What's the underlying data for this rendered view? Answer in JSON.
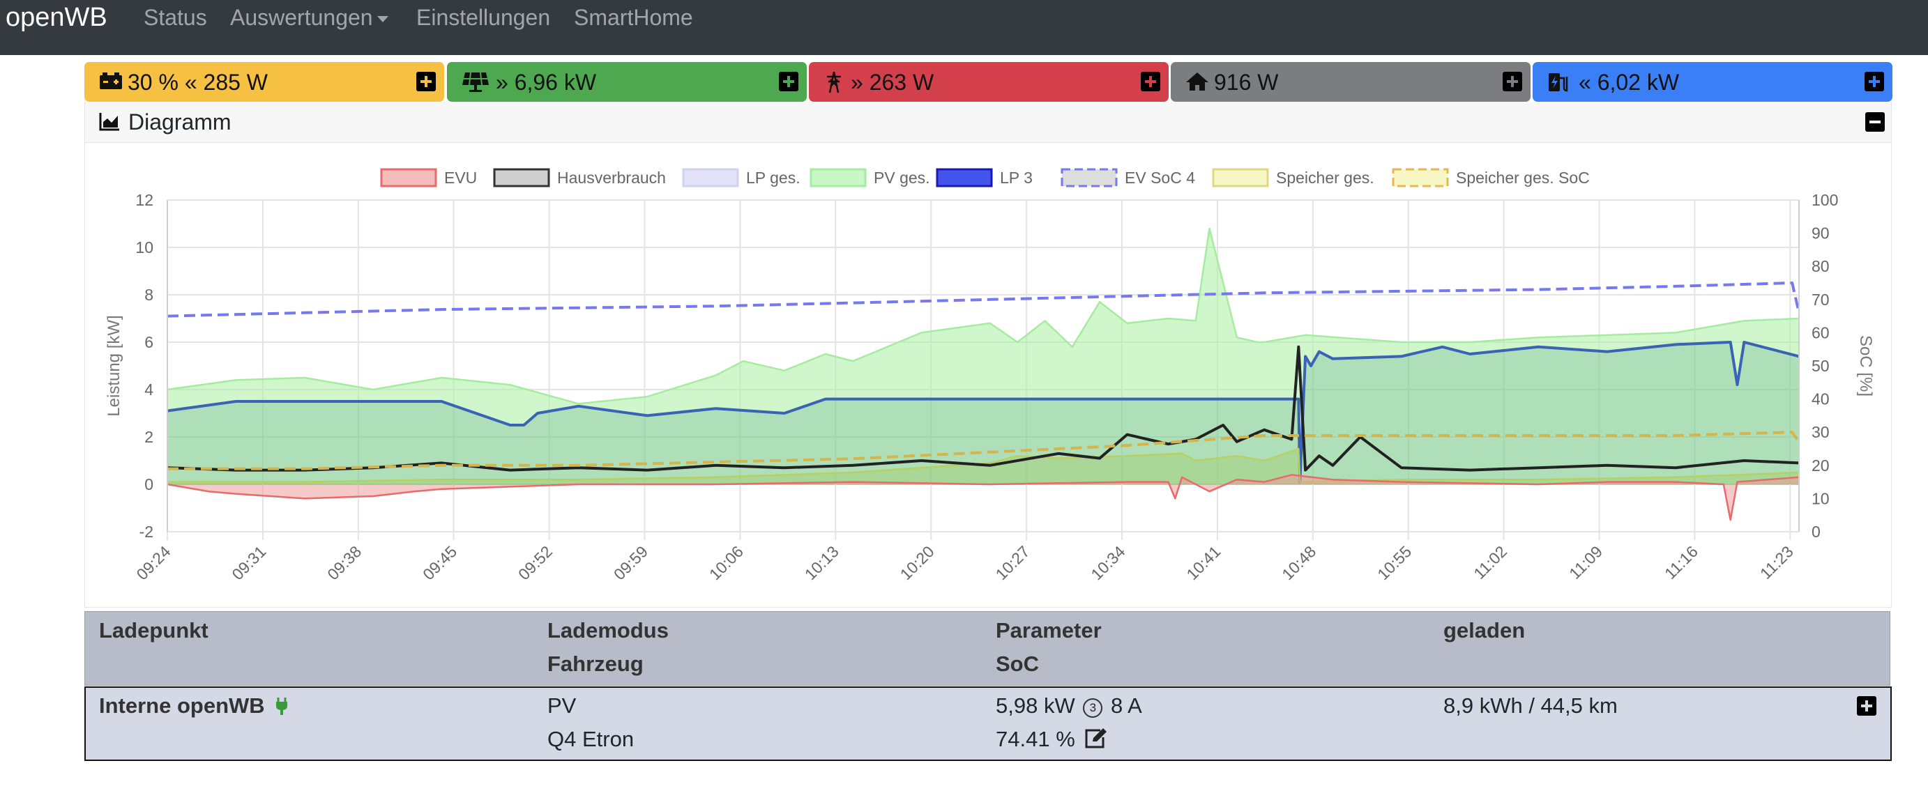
{
  "navbar": {
    "brand": "openWB",
    "links": [
      "Status",
      "Auswertungen",
      "Einstellungen",
      "SmartHome"
    ]
  },
  "tiles": [
    {
      "icon": "car-battery-icon",
      "value": "30 % « 285 W",
      "color": "#f6c142"
    },
    {
      "icon": "solar-panel-icon",
      "value": "» 6,96 kW",
      "color": "#4ea850"
    },
    {
      "icon": "power-tower-icon",
      "value": "» 263 W",
      "color": "#d3404c"
    },
    {
      "icon": "home-icon",
      "value": "916 W",
      "color": "#7b7d7f"
    },
    {
      "icon": "charging-station-icon",
      "value": "« 6,02 kW",
      "color": "#3a7ff6"
    }
  ],
  "diagram": {
    "title": "Diagramm"
  },
  "chart_data": {
    "type": "line",
    "legend_position": "top",
    "legend": [
      {
        "name": "EVU",
        "fill": "#f6bcbc",
        "stroke": "#e86a6a",
        "dashed": false
      },
      {
        "name": "Hausverbrauch",
        "fill": "#cfcfcf",
        "stroke": "#333333",
        "dashed": false
      },
      {
        "name": "LP ges.",
        "fill": "#e3e3f7",
        "stroke": "#d2d2ee",
        "dashed": false
      },
      {
        "name": "PV ges.",
        "fill": "#c9f7c5",
        "stroke": "#a6eba0",
        "dashed": false
      },
      {
        "name": "LP 3",
        "fill": "#4455ee",
        "stroke": "#1a1ab0",
        "dashed": false
      },
      {
        "name": "EV SoC 4",
        "fill": "#dddddd",
        "stroke": "#7777ee",
        "dashed": true
      },
      {
        "name": "Speicher ges.",
        "fill": "#f7f7c6",
        "stroke": "#e0d880",
        "dashed": false
      },
      {
        "name": "Speicher ges. SoC",
        "fill": "#f7f7c6",
        "stroke": "#e6b84e",
        "dashed": true
      }
    ],
    "ylabel": "Leistung [kW]",
    "y2label": "SoC [%]",
    "ylim": [
      -2,
      12
    ],
    "y2lim": [
      0,
      100
    ],
    "yticks": [
      "-2",
      "0",
      "2",
      "4",
      "6",
      "8",
      "10",
      "12"
    ],
    "y2ticks": [
      "0",
      "10",
      "20",
      "30",
      "40",
      "50",
      "60",
      "70",
      "80",
      "90",
      "100"
    ],
    "x_categories": [
      "09:24",
      "09:31",
      "09:38",
      "09:45",
      "09:52",
      "09:59",
      "10:06",
      "10:13",
      "10:20",
      "10:27",
      "10:34",
      "10:41",
      "10:48",
      "10:55",
      "11:02",
      "11:09",
      "11:16",
      "11:23"
    ],
    "grid": true,
    "series": [
      {
        "name": "PV ges.",
        "kind": "area",
        "color": "#a6eba0",
        "fill": "rgba(170,240,160,0.55)",
        "x": [
          0,
          5,
          10,
          15,
          20,
          25,
          30,
          35,
          40,
          42,
          45,
          48,
          50,
          55,
          60,
          62,
          64,
          66,
          68,
          70,
          73,
          75,
          76,
          78,
          79.5,
          80,
          83,
          90,
          95,
          100,
          110,
          115,
          119
        ],
        "values": [
          4.0,
          4.4,
          4.5,
          4.0,
          4.5,
          4.2,
          3.4,
          3.7,
          4.6,
          5.2,
          4.8,
          5.5,
          5.2,
          6.4,
          6.8,
          6.0,
          6.9,
          5.8,
          7.7,
          6.8,
          7.0,
          6.9,
          10.8,
          6.2,
          6.0,
          6.0,
          6.3,
          6.0,
          6.0,
          6.2,
          6.4,
          6.9,
          7.0
        ]
      },
      {
        "name": "LP 3",
        "kind": "area",
        "color": "#3a62b5",
        "fill": "rgba(40,130,110,0.20)",
        "x": [
          0,
          5,
          10,
          15,
          20,
          25,
          26,
          27,
          30,
          35,
          40,
          45,
          48,
          50,
          55,
          65,
          75,
          82.5,
          82.6,
          83,
          83.4,
          84,
          85,
          90,
          93,
          95,
          100,
          105,
          110,
          114,
          114.5,
          115,
          119
        ],
        "values": [
          3.1,
          3.5,
          3.5,
          3.5,
          3.5,
          2.5,
          2.5,
          3.0,
          3.3,
          2.9,
          3.2,
          3.0,
          3.6,
          3.6,
          3.6,
          3.6,
          3.6,
          3.6,
          0.1,
          5.4,
          5.0,
          5.6,
          5.3,
          5.4,
          5.8,
          5.5,
          5.8,
          5.6,
          5.9,
          6.0,
          4.2,
          6.0,
          5.4
        ]
      },
      {
        "name": "Hausverbrauch",
        "kind": "line",
        "color": "#222222",
        "x": [
          0,
          5,
          10,
          15,
          20,
          25,
          30,
          35,
          40,
          45,
          50,
          55,
          60,
          65,
          68,
          70,
          73,
          75,
          77,
          78,
          80,
          82,
          82.5,
          83,
          84,
          85,
          87,
          90,
          95,
          100,
          105,
          110,
          115,
          119
        ],
        "values": [
          0.7,
          0.6,
          0.6,
          0.7,
          0.9,
          0.6,
          0.7,
          0.6,
          0.8,
          0.7,
          0.8,
          1.0,
          0.8,
          1.3,
          1.1,
          2.1,
          1.7,
          1.9,
          2.5,
          1.8,
          2.3,
          1.9,
          5.8,
          0.6,
          1.2,
          0.8,
          2.0,
          0.7,
          0.6,
          0.7,
          0.8,
          0.7,
          1.0,
          0.9
        ]
      },
      {
        "name": "Speicher ges.",
        "kind": "area",
        "color": "#b8d060",
        "fill": "rgba(160,200,80,0.30)",
        "x": [
          0,
          10,
          20,
          30,
          40,
          50,
          55,
          60,
          62,
          65,
          70,
          74,
          75,
          78,
          80,
          82.5,
          82.6,
          90,
          100,
          110,
          119
        ],
        "values": [
          0.1,
          0.1,
          0.2,
          0.2,
          0.3,
          0.5,
          0.7,
          0.9,
          1.2,
          1.1,
          1.2,
          1.3,
          1.0,
          1.2,
          1.0,
          1.5,
          0.1,
          0.2,
          0.2,
          0.3,
          0.5
        ]
      },
      {
        "name": "EVU",
        "kind": "area",
        "color": "#e86a6a",
        "fill": "rgba(240,150,150,0.50)",
        "x": [
          0,
          3,
          5,
          10,
          15,
          18,
          20,
          25,
          30,
          40,
          50,
          60,
          70,
          73,
          73.5,
          74,
          76,
          78,
          80,
          82,
          85,
          90,
          100,
          105,
          110,
          113.5,
          114,
          114.5,
          119
        ],
        "values": [
          0.0,
          -0.3,
          -0.4,
          -0.6,
          -0.5,
          -0.3,
          -0.2,
          -0.1,
          0.0,
          0.0,
          0.1,
          0.0,
          0.1,
          0.1,
          -0.6,
          0.3,
          -0.3,
          0.2,
          0.1,
          0.4,
          0.2,
          0.1,
          0.0,
          0.1,
          0.1,
          0.0,
          -1.5,
          0.1,
          0.3
        ]
      },
      {
        "name": "EV SoC 4",
        "kind": "line",
        "dashed": true,
        "axis": "y2",
        "color": "#7777ee",
        "x": [
          0,
          10,
          20,
          30,
          40,
          50,
          60,
          70,
          80,
          90,
          100,
          110,
          118.5,
          119
        ],
        "values": [
          65,
          66,
          67,
          67.5,
          68,
          69,
          70,
          71,
          72,
          72.5,
          73,
          74,
          75,
          66
        ]
      },
      {
        "name": "Speicher ges. SoC",
        "kind": "line",
        "dashed": true,
        "axis": "y2",
        "color": "#d4b44c",
        "x": [
          0,
          10,
          20,
          30,
          40,
          50,
          60,
          70,
          80,
          90,
          100,
          110,
          118.5,
          119
        ],
        "values": [
          19,
          19,
          20,
          20,
          21,
          22,
          24,
          26,
          29,
          29,
          29,
          29,
          30,
          27
        ]
      }
    ]
  },
  "table": {
    "headers": {
      "ladepunkt": "Ladepunkt",
      "lademodus": "Lademodus",
      "fahrzeug": "Fahrzeug",
      "parameter": "Parameter",
      "soc": "SoC",
      "geladen": "geladen"
    },
    "row": {
      "name": "Interne openWB",
      "mode": "PV",
      "vehicle": "Q4 Etron",
      "power": "5,98 kW",
      "phases": "3",
      "current": "8 A",
      "soc": "74.41 %",
      "charged": "8,9 kWh / 44,5 km"
    }
  }
}
